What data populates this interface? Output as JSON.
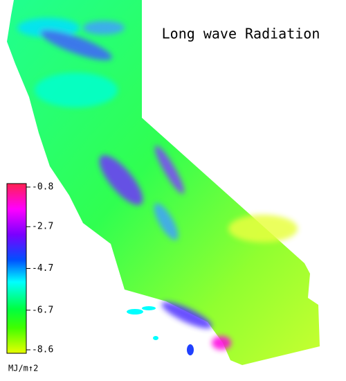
{
  "title": "Long wave Radiation",
  "colorbar": {
    "label": "MJ/m↑2",
    "lim": [
      -8.6,
      -0.8
    ],
    "ticks": [
      -0.8,
      -2.7,
      -4.7,
      -6.7,
      -8.6
    ]
  }
}
